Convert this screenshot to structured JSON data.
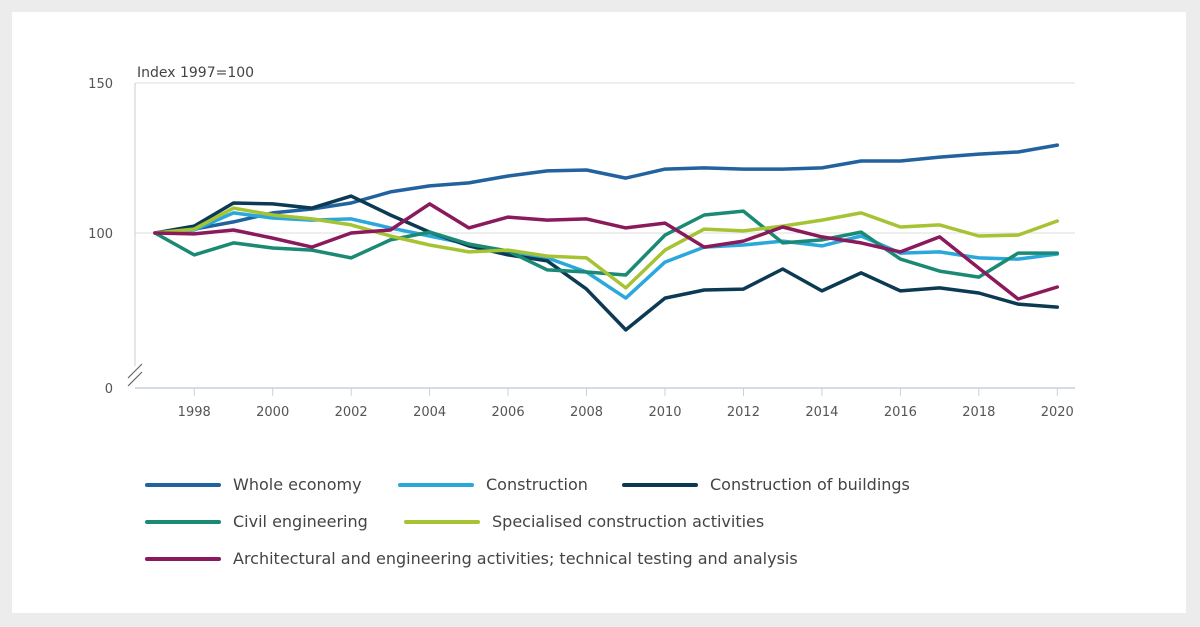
{
  "chart_data": {
    "type": "line",
    "ylabel": "Index 1997=100",
    "y_ticks": [
      0,
      100,
      150
    ],
    "ylim": [
      0,
      150
    ],
    "y_axis_break": true,
    "x_ticks": [
      "1998",
      "2000",
      "2002",
      "2004",
      "2006",
      "2008",
      "2010",
      "2012",
      "2014",
      "2016",
      "2018",
      "2020"
    ],
    "x": [
      1997,
      1998,
      1999,
      2000,
      2001,
      2002,
      2003,
      2004,
      2005,
      2006,
      2007,
      2008,
      2009,
      2010,
      2011,
      2012,
      2013,
      2014,
      2015,
      2016,
      2017,
      2018,
      2019,
      2020
    ],
    "grid": "horizontal at 100",
    "legend_placement": "bottom",
    "series": [
      {
        "name": "Whole economy",
        "color": "#22629f",
        "values": [
          100,
          101.3,
          103.7,
          106.7,
          108,
          110,
          113.7,
          115.7,
          116.7,
          119,
          120.7,
          121,
          118.3,
          121.3,
          121.7,
          121.3,
          121.3,
          121.7,
          124,
          124,
          125.3,
          126.3,
          127,
          129.3
        ]
      },
      {
        "name": "Construction",
        "color": "#2aa8dc",
        "values": [
          100,
          101,
          106.7,
          105,
          104.3,
          104.7,
          101.7,
          99,
          96.3,
          93.7,
          91.7,
          87,
          78.3,
          90.3,
          95.3,
          96,
          97.3,
          95.7,
          99,
          93.3,
          93.7,
          91.7,
          91.3,
          93
        ]
      },
      {
        "name": "Construction of buildings",
        "color": "#0c3a53",
        "values": [
          100,
          102.3,
          110,
          109.7,
          108.3,
          112.3,
          106,
          100.3,
          95.7,
          92.7,
          90.7,
          81.3,
          67.7,
          78.3,
          81,
          81.3,
          88,
          80.7,
          86.7,
          80.7,
          81.7,
          80,
          76.3,
          75.3
        ]
      },
      {
        "name": "Civil engineering",
        "color": "#1a8a74",
        "values": [
          100,
          92.7,
          96.7,
          95,
          94.3,
          91.7,
          97.7,
          100.3,
          96.3,
          94,
          87.7,
          87,
          86,
          99.3,
          106,
          107.3,
          96.7,
          97.7,
          100.3,
          91.3,
          87.3,
          85.3,
          93.3,
          93.3
        ]
      },
      {
        "name": "Specialised construction activities",
        "color": "#a6c333",
        "values": [
          100,
          101.3,
          108.3,
          106,
          104.7,
          102.7,
          99,
          96,
          93.7,
          94.3,
          92.3,
          91.7,
          81.7,
          94.3,
          101.3,
          100.7,
          102.3,
          104.3,
          106.7,
          102,
          102.7,
          99,
          99.3,
          104
        ]
      },
      {
        "name": "Architectural and engineering activities; technical testing and analysis",
        "color": "#8a1a5c",
        "values": [
          100,
          99.7,
          101,
          98.3,
          95.3,
          100,
          101,
          109.7,
          101.7,
          105.3,
          104.3,
          104.7,
          101.7,
          103.3,
          95.3,
          97.3,
          102,
          98.7,
          96.7,
          93.7,
          98.7,
          88.3,
          78,
          82
        ]
      }
    ]
  }
}
